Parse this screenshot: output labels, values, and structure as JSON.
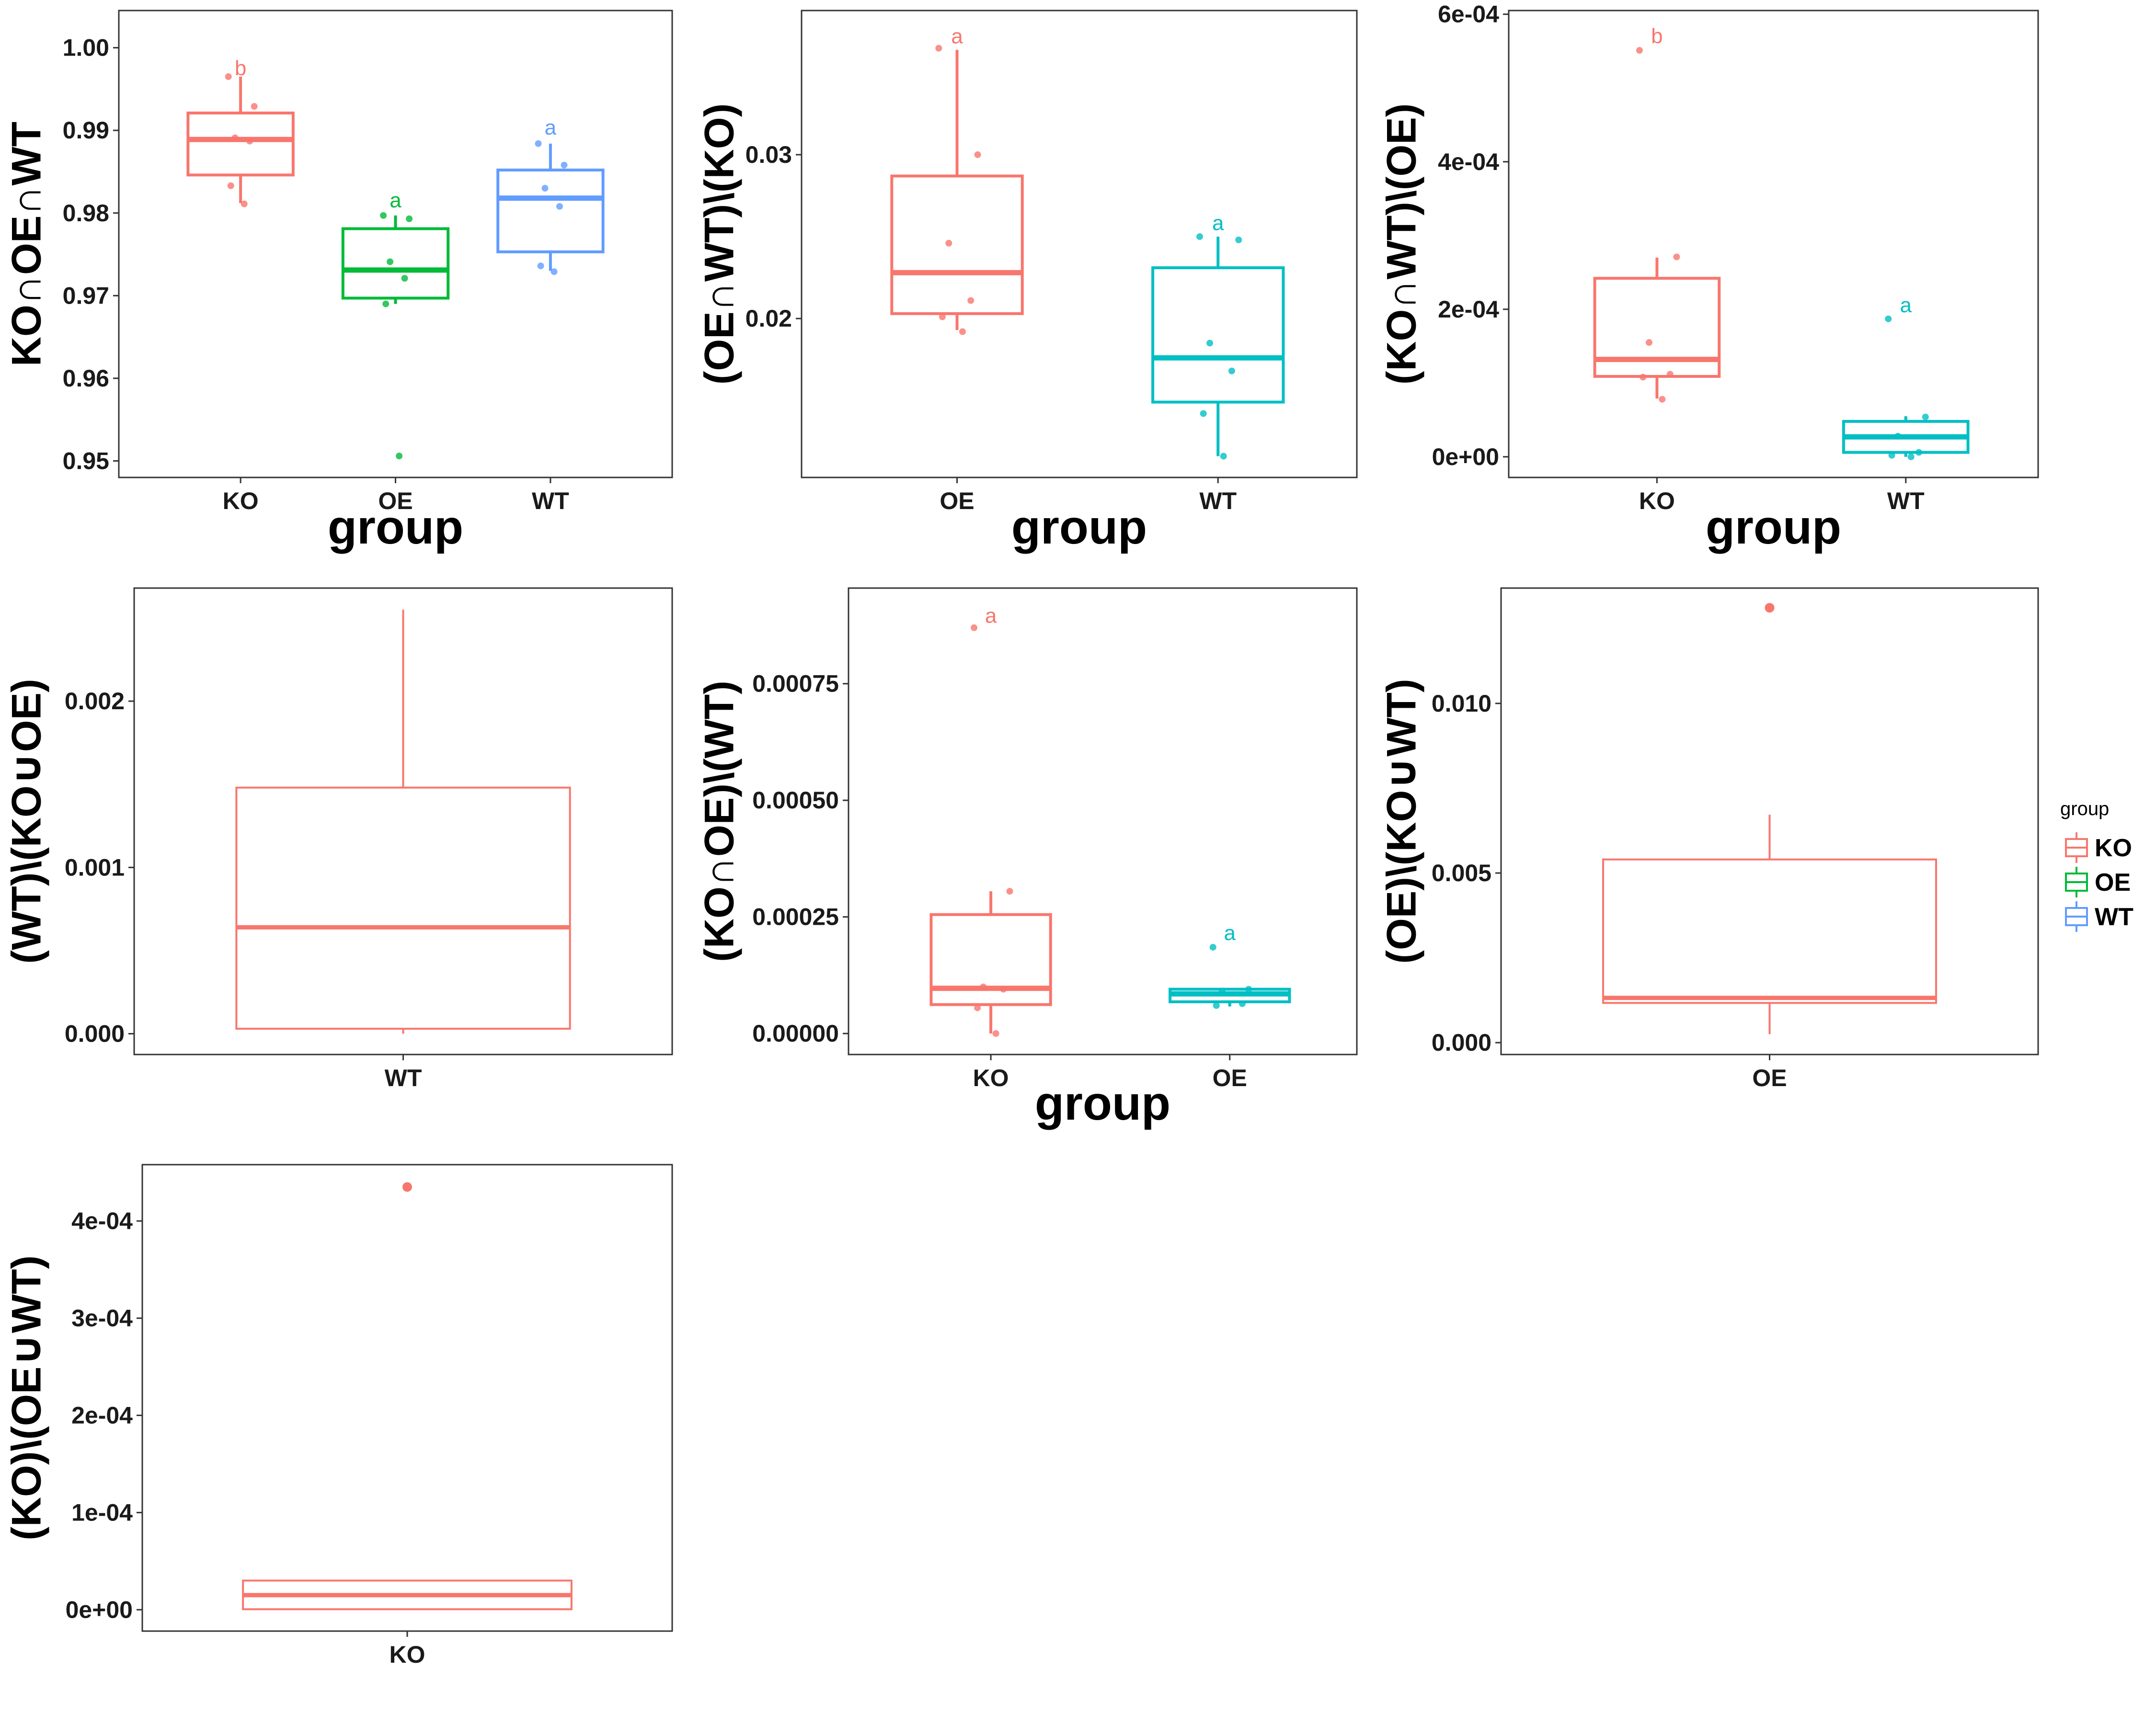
{
  "colors": {
    "KO": "#F8766D",
    "OE": "#00BA38",
    "WT": "#619CFF",
    "WT_two_group": "#00BFC4"
  },
  "legend": {
    "title": "group",
    "items": [
      "KO",
      "OE",
      "WT"
    ]
  },
  "chart_data": [
    {
      "type": "box",
      "ylabel": "KO∩OE∩WT",
      "xlabel": "group",
      "categories": [
        "KO",
        "OE",
        "WT"
      ],
      "ylim": [
        0.948,
        1.0045
      ],
      "yticks": [
        0.95,
        0.96,
        0.97,
        0.98,
        0.99,
        1.0
      ],
      "ytick_labels": [
        "0.95",
        "0.96",
        "0.97",
        "0.98",
        "0.99",
        "1.00"
      ],
      "series": [
        {
          "name": "KO",
          "color": "#F8766D",
          "letter": "b",
          "letter_y": 0.9975,
          "q1": 0.9846,
          "median": 0.9889,
          "q3": 0.9921,
          "whisker_low": 0.9812,
          "whisker_high": 0.9965,
          "points": [
            0.9965,
            0.9929,
            0.9891,
            0.9887,
            0.9833,
            0.9811
          ]
        },
        {
          "name": "OE",
          "color": "#00BA38",
          "letter": "a",
          "letter_y": 0.9815,
          "q1": 0.9697,
          "median": 0.9731,
          "q3": 0.9781,
          "whisker_low": 0.969,
          "whisker_high": 0.9797,
          "points": [
            0.9797,
            0.9793,
            0.9741,
            0.9721,
            0.969,
            0.9506
          ]
        },
        {
          "name": "WT",
          "color": "#619CFF",
          "letter": "a",
          "letter_y": 0.9903,
          "q1": 0.9753,
          "median": 0.9818,
          "q3": 0.9852,
          "whisker_low": 0.973,
          "whisker_high": 0.9884,
          "points": [
            0.9884,
            0.9858,
            0.983,
            0.9808,
            0.9736,
            0.9729
          ]
        }
      ]
    },
    {
      "type": "box",
      "ylabel": "(OE∩WT)\\(KO)",
      "xlabel": "group",
      "categories": [
        "OE",
        "WT"
      ],
      "ylim": [
        0.0103,
        0.0388
      ],
      "yticks": [
        0.02,
        0.03
      ],
      "ytick_labels": [
        "0.02",
        "0.03"
      ],
      "series": [
        {
          "name": "OE",
          "color": "#F8766D",
          "letter": "a",
          "letter_y": 0.0372,
          "q1": 0.0203,
          "median": 0.0228,
          "q3": 0.0287,
          "whisker_low": 0.0193,
          "whisker_high": 0.0364,
          "points": [
            0.0365,
            0.03,
            0.0246,
            0.0211,
            0.0201,
            0.0192
          ]
        },
        {
          "name": "WT",
          "color": "#00BFC4",
          "letter": "a",
          "letter_y": 0.0258,
          "q1": 0.0149,
          "median": 0.0176,
          "q3": 0.0231,
          "whisker_low": 0.0116,
          "whisker_high": 0.025,
          "points": [
            0.025,
            0.0248,
            0.0185,
            0.0168,
            0.0142,
            0.0116
          ]
        }
      ]
    },
    {
      "type": "box",
      "ylabel": "(KO∩WT)\\(OE)",
      "xlabel": "group",
      "categories": [
        "KO",
        "WT"
      ],
      "ylim": [
        -2.8e-05,
        0.000605
      ],
      "yticks": [
        0,
        0.0002,
        0.0004,
        0.0006
      ],
      "ytick_labels": [
        "0e+00",
        "2e-04",
        "4e-04",
        "6e-04"
      ],
      "series": [
        {
          "name": "KO",
          "color": "#F8766D",
          "letter": "b",
          "letter_y": 0.00057,
          "q1": 0.000109,
          "median": 0.000132,
          "q3": 0.000242,
          "whisker_low": 7.9e-05,
          "whisker_high": 0.00027,
          "points": [
            0.000551,
            0.000271,
            0.000155,
            0.000112,
            0.000108,
            7.8e-05
          ]
        },
        {
          "name": "WT",
          "color": "#00BFC4",
          "letter": "a",
          "letter_y": 0.000205,
          "q1": 6e-06,
          "median": 2.7e-05,
          "q3": 4.8e-05,
          "whisker_low": 0.0,
          "whisker_high": 5.5e-05,
          "points": [
            0.000187,
            5.4e-05,
            2.8e-05,
            6e-06,
            2e-06,
            0.0
          ]
        }
      ]
    },
    {
      "type": "box",
      "ylabel": "(WT)\\(KO∪OE)",
      "xlabel": "",
      "categories": [
        "WT"
      ],
      "ylim": [
        -0.000125,
        0.00268
      ],
      "yticks": [
        0,
        0.001,
        0.002
      ],
      "ytick_labels": [
        "0.000",
        "0.001",
        "0.002"
      ],
      "series": [
        {
          "name": "WT",
          "color": "#F8766D",
          "letter": "",
          "q1": 3e-05,
          "median": 0.00064,
          "q3": 0.00148,
          "whisker_low": 0.0,
          "whisker_high": 0.00255,
          "points": []
        }
      ]
    },
    {
      "type": "box",
      "ylabel": "(KO∩OE)\\(WT)",
      "xlabel": "group",
      "categories": [
        "KO",
        "OE"
      ],
      "ylim": [
        -4.5e-05,
        0.000955
      ],
      "yticks": [
        0,
        0.00025,
        0.0005,
        0.00075
      ],
      "ytick_labels": [
        "0.00000",
        "0.00025",
        "0.00050",
        "0.00075"
      ],
      "series": [
        {
          "name": "KO",
          "color": "#F8766D",
          "letter": "a",
          "letter_y": 0.000895,
          "q1": 6.2e-05,
          "median": 9.7e-05,
          "q3": 0.000255,
          "whisker_low": 0.0,
          "whisker_high": 0.000305,
          "points": [
            0.00087,
            0.000305,
            0.0001,
            9.5e-05,
            5.5e-05,
            0.0
          ]
        },
        {
          "name": "OE",
          "color": "#00BFC4",
          "letter": "a",
          "letter_y": 0.000215,
          "q1": 6.8e-05,
          "median": 8.5e-05,
          "q3": 9.5e-05,
          "whisker_low": 5.8e-05,
          "whisker_high": 9.5e-05,
          "points": [
            0.000185,
            9.5e-05,
            9e-05,
            6.4e-05,
            6e-05
          ]
        }
      ]
    },
    {
      "type": "box",
      "ylabel": "(OE)\\(KO∪WT)",
      "xlabel": "",
      "categories": [
        "OE"
      ],
      "ylim": [
        -0.00035,
        0.0134
      ],
      "yticks": [
        0,
        0.005,
        0.01
      ],
      "ytick_labels": [
        "0.000",
        "0.005",
        "0.010"
      ],
      "series": [
        {
          "name": "OE",
          "color": "#F8766D",
          "letter": "",
          "q1": 0.00117,
          "median": 0.00132,
          "q3": 0.0054,
          "whisker_low": 0.00025,
          "whisker_high": 0.00672,
          "outliers": [
            0.01282
          ],
          "points": []
        }
      ]
    },
    {
      "type": "box",
      "ylabel": "(KO)\\(OE∪WT)",
      "xlabel": "",
      "categories": [
        "KO"
      ],
      "ylim": [
        -2.2e-05,
        0.000458
      ],
      "yticks": [
        0,
        0.0001,
        0.0002,
        0.0003,
        0.0004
      ],
      "ytick_labels": [
        "0e+00",
        "1e-04",
        "2e-04",
        "3e-04",
        "4e-04"
      ],
      "series": [
        {
          "name": "KO",
          "color": "#F8766D",
          "letter": "",
          "q1": 5e-07,
          "median": 1.5e-05,
          "q3": 3e-05,
          "whisker_low": 5e-07,
          "whisker_high": 3e-05,
          "outliers": [
            0.000435
          ],
          "points": []
        }
      ]
    }
  ]
}
